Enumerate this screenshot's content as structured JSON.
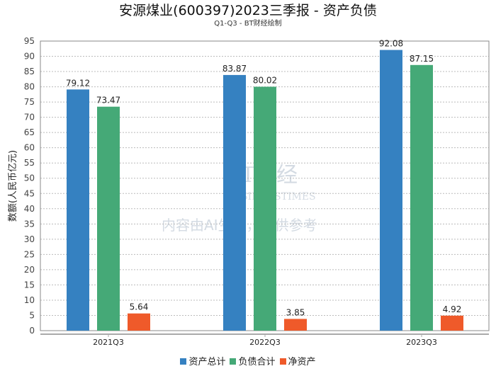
{
  "title": "安源煤业(600397)2023三季报 - 资产负债",
  "subtitle": "Q1-Q3 - BT财经绘制",
  "watermark": {
    "brand": "BT财经",
    "brand_en": "BUSINESSTIMES",
    "notice": "内容由AI生成，仅供参考"
  },
  "chart_data": {
    "type": "bar",
    "title": "安源煤业(600397)2023三季报 - 资产负债",
    "subtitle": "Q1-Q3 - BT财经绘制",
    "xlabel": "",
    "ylabel": "数额(人民币亿元)",
    "ylim": [
      0,
      95
    ],
    "yticks": [
      0,
      5,
      10,
      15,
      20,
      25,
      30,
      35,
      40,
      45,
      50,
      55,
      60,
      65,
      70,
      75,
      80,
      85,
      90,
      95
    ],
    "grid": true,
    "legend_position": "bottom",
    "categories": [
      "2021Q3",
      "2022Q3",
      "2023Q3"
    ],
    "series": [
      {
        "name": "资产总计",
        "color": "#3581c1",
        "values": [
          79.12,
          83.87,
          92.08
        ],
        "labels": [
          "79.12",
          "83.87",
          "92.08"
        ]
      },
      {
        "name": "负债合计",
        "color": "#45a977",
        "values": [
          73.47,
          80.02,
          87.15
        ],
        "labels": [
          "73.47",
          "80.02",
          "87.15"
        ]
      },
      {
        "name": "净资产",
        "color": "#ef5a2a",
        "values": [
          5.64,
          3.85,
          4.92
        ],
        "labels": [
          "5.64",
          "3.85",
          "4.92"
        ]
      }
    ]
  }
}
